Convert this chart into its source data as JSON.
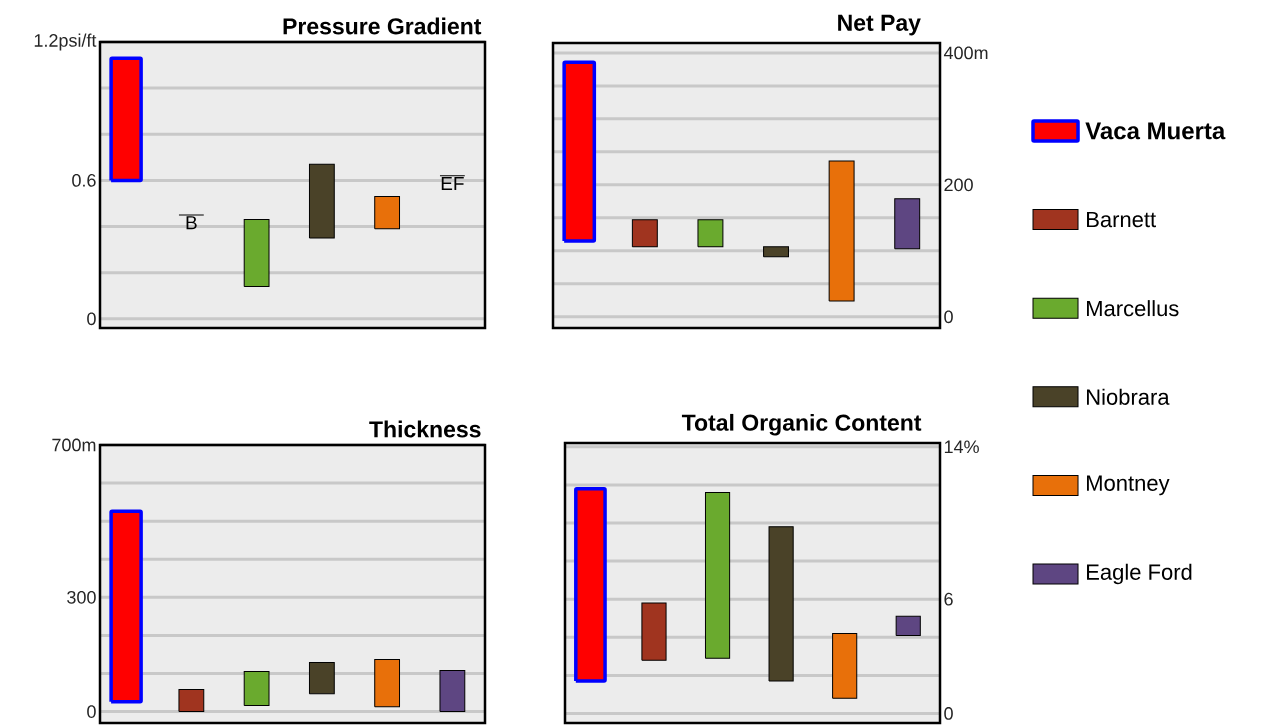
{
  "chart_data": [
    {
      "type": "bar",
      "title": "Pressure Gradient",
      "categories": [
        null,
        null,
        null,
        null,
        null,
        null
      ],
      "ylim": [
        -0.04,
        1.2
      ],
      "yticks": [
        {
          "value": 0,
          "label": "0"
        },
        {
          "value": 0.2,
          "label": null
        },
        {
          "value": 0.4,
          "label": null
        },
        {
          "value": 0.6,
          "label": "0.6"
        },
        {
          "value": 0.8,
          "label": null
        },
        {
          "value": 1.0,
          "label": null
        },
        {
          "value": 1.2,
          "label": "1.2psi/ft"
        }
      ],
      "grid": "y",
      "tick_labels": "y",
      "annotations": [
        {
          "text": "B",
          "y": 0.45
        },
        {
          "text": "EF",
          "y": 0.62
        }
      ],
      "series": [
        {
          "color": "#ff0000",
          "values": [
            0.53,
            null,
            null,
            null,
            null,
            null
          ],
          "base": [
            0.6,
            null,
            null,
            null,
            null,
            null
          ]
        },
        {
          "color": "#000000",
          "values": [
            null,
            0,
            null,
            null,
            null,
            null
          ],
          "base": [
            null,
            0.45,
            null,
            null,
            null,
            null
          ]
        },
        {
          "color": "#6aaa2e",
          "values": [
            null,
            null,
            0.29,
            null,
            null,
            null
          ],
          "base": [
            null,
            null,
            0.14,
            null,
            null,
            null
          ]
        },
        {
          "color": "#4a4228",
          "values": [
            null,
            null,
            null,
            0.32,
            null,
            null
          ],
          "base": [
            null,
            null,
            null,
            0.35,
            null,
            null
          ]
        },
        {
          "color": "#e8700a",
          "values": [
            null,
            null,
            null,
            null,
            0.14,
            null
          ],
          "base": [
            null,
            null,
            null,
            null,
            0.39,
            null
          ]
        },
        {
          "color": "#000000",
          "values": [
            null,
            null,
            null,
            null,
            null,
            0
          ],
          "base": [
            null,
            null,
            null,
            null,
            null,
            0.62
          ]
        }
      ]
    },
    {
      "type": "bar",
      "title": "Net Pay",
      "categories": [
        null,
        null,
        null,
        null,
        null,
        null
      ],
      "ylim": [
        -17,
        415
      ],
      "yticks": [
        {
          "value": 0,
          "label": "0"
        },
        {
          "value": 50,
          "label": null
        },
        {
          "value": 100,
          "label": null
        },
        {
          "value": 150,
          "label": null
        },
        {
          "value": 200,
          "label": "200"
        },
        {
          "value": 250,
          "label": null
        },
        {
          "value": 300,
          "label": null
        },
        {
          "value": 350,
          "label": null
        },
        {
          "value": 400,
          "label": "400m"
        }
      ],
      "grid": "y",
      "tick_labels": "y",
      "legend": "right",
      "series": [
        {
          "name": "Vaca Muerta",
          "color": "#ff0000",
          "values": [
            271,
            null,
            null,
            null,
            null,
            null
          ],
          "base": [
            115,
            null,
            null,
            null,
            null,
            null
          ]
        },
        {
          "name": "Barnett",
          "color": "#a0341f",
          "values": [
            null,
            41,
            null,
            null,
            null,
            null
          ],
          "base": [
            null,
            106,
            null,
            null,
            null,
            null
          ]
        },
        {
          "name": "Marcellus",
          "color": "#6aaa2e",
          "values": [
            null,
            null,
            41,
            null,
            null,
            null
          ],
          "base": [
            null,
            null,
            106,
            null,
            null,
            null
          ]
        },
        {
          "name": "Niobrara",
          "color": "#4a4228",
          "values": [
            null,
            null,
            null,
            15,
            null,
            null
          ],
          "base": [
            null,
            null,
            null,
            91,
            null,
            null
          ]
        },
        {
          "name": "Montney",
          "color": "#e8700a",
          "values": [
            null,
            null,
            null,
            null,
            212,
            null
          ],
          "base": [
            null,
            null,
            null,
            null,
            24,
            null
          ]
        },
        {
          "name": "Eagle Ford",
          "color": "#5e4682",
          "values": [
            null,
            null,
            null,
            null,
            null,
            76
          ],
          "base": [
            null,
            null,
            null,
            null,
            null,
            103
          ]
        }
      ]
    },
    {
      "type": "bar",
      "title": "Thickness",
      "categories": [
        null,
        null,
        null,
        null,
        null,
        null
      ],
      "ylim": [
        -30,
        700
      ],
      "yticks": [
        {
          "value": 0,
          "label": "0"
        },
        {
          "value": 100,
          "label": null
        },
        {
          "value": 200,
          "label": null
        },
        {
          "value": 300,
          "label": "300"
        },
        {
          "value": 400,
          "label": null
        },
        {
          "value": 500,
          "label": null
        },
        {
          "value": 600,
          "label": null
        },
        {
          "value": 700,
          "label": "700m"
        }
      ],
      "grid": "y",
      "tick_labels": "y",
      "series": [
        {
          "color": "#ff0000",
          "values": [
            500,
            null,
            null,
            null,
            null,
            null
          ],
          "base": [
            26,
            null,
            null,
            null,
            null,
            null
          ]
        },
        {
          "color": "#a0341f",
          "values": [
            null,
            58,
            null,
            null,
            null,
            null
          ],
          "base": [
            null,
            0,
            null,
            null,
            null,
            null
          ]
        },
        {
          "color": "#6aaa2e",
          "values": [
            null,
            null,
            89,
            null,
            null,
            null
          ],
          "base": [
            null,
            null,
            16,
            null,
            null,
            null
          ]
        },
        {
          "color": "#4a4228",
          "values": [
            null,
            null,
            null,
            82,
            null,
            null
          ],
          "base": [
            null,
            null,
            null,
            47,
            null,
            null
          ]
        },
        {
          "color": "#e8700a",
          "values": [
            null,
            null,
            null,
            null,
            124,
            null
          ],
          "base": [
            null,
            null,
            null,
            null,
            13,
            null
          ]
        },
        {
          "color": "#5e4682",
          "values": [
            null,
            null,
            null,
            null,
            null,
            108
          ],
          "base": [
            null,
            null,
            null,
            null,
            null,
            0
          ]
        }
      ]
    },
    {
      "type": "bar",
      "title": "Total Organic Content",
      "categories": [
        null,
        null,
        null,
        null,
        null,
        null
      ],
      "ylim": [
        -0.5,
        14.2
      ],
      "yticks": [
        {
          "value": 0,
          "label": "0"
        },
        {
          "value": 2,
          "label": null
        },
        {
          "value": 4,
          "label": null
        },
        {
          "value": 6,
          "label": "6"
        },
        {
          "value": 8,
          "label": null
        },
        {
          "value": 10,
          "label": null
        },
        {
          "value": 12,
          "label": null
        },
        {
          "value": 14,
          "label": "14%"
        }
      ],
      "grid": "y",
      "tick_labels": "y",
      "series": [
        {
          "color": "#ff0000",
          "values": [
            10.1,
            null,
            null,
            null,
            null,
            null
          ],
          "base": [
            1.7,
            null,
            null,
            null,
            null,
            null
          ]
        },
        {
          "color": "#a0341f",
          "values": [
            null,
            3.0,
            null,
            null,
            null,
            null
          ],
          "base": [
            null,
            2.8,
            null,
            null,
            null,
            null
          ]
        },
        {
          "color": "#6aaa2e",
          "values": [
            null,
            null,
            8.7,
            null,
            null,
            null
          ],
          "base": [
            null,
            null,
            2.9,
            null,
            null,
            null
          ]
        },
        {
          "color": "#4a4228",
          "values": [
            null,
            null,
            null,
            8.1,
            null,
            null
          ],
          "base": [
            null,
            null,
            null,
            1.7,
            null,
            null
          ]
        },
        {
          "color": "#e8700a",
          "values": [
            null,
            null,
            null,
            null,
            3.4,
            null
          ],
          "base": [
            null,
            null,
            null,
            null,
            0.8,
            null
          ]
        },
        {
          "color": "#5e4682",
          "values": [
            null,
            null,
            null,
            null,
            null,
            1.0
          ],
          "base": [
            null,
            null,
            null,
            null,
            null,
            4.1
          ]
        }
      ]
    }
  ]
}
